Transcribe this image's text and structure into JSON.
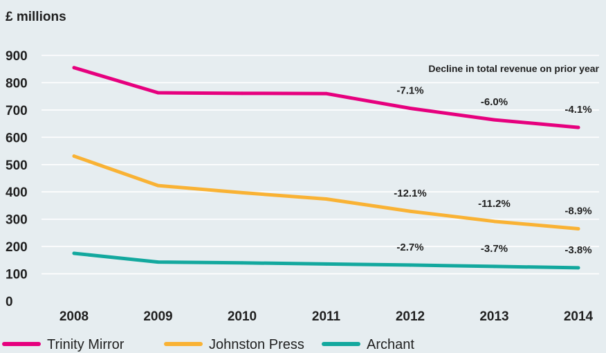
{
  "chart_data": {
    "type": "line",
    "unit_label": "£ millions",
    "note": "Decline in total revenue on prior year",
    "x": [
      "2008",
      "2009",
      "2010",
      "2011",
      "2012",
      "2013",
      "2014"
    ],
    "yticks": [
      "0",
      "100",
      "200",
      "300",
      "400",
      "500",
      "600",
      "700",
      "800",
      "900"
    ],
    "ylim": [
      0,
      900
    ],
    "grid": true,
    "legend_position": "bottom-left",
    "series": [
      {
        "name": "Trinity Mirror",
        "color": "#e6007e",
        "values": [
          855,
          763,
          761,
          760,
          706,
          664,
          636
        ],
        "labels": [
          null,
          null,
          null,
          null,
          "-7.1%",
          "-6.0%",
          "-4.1%"
        ]
      },
      {
        "name": "Johnston Press",
        "color": "#f9b234",
        "values": [
          531,
          423,
          397,
          374,
          329,
          292,
          265
        ],
        "labels": [
          null,
          null,
          null,
          null,
          "-12.1%",
          "-11.2%",
          "-8.9%"
        ]
      },
      {
        "name": "Archant",
        "color": "#13a89e",
        "values": [
          175,
          143,
          140,
          136,
          132,
          127,
          122
        ],
        "labels": [
          null,
          null,
          null,
          null,
          "-2.7%",
          "-3.7%",
          "-3.8%"
        ]
      }
    ]
  }
}
